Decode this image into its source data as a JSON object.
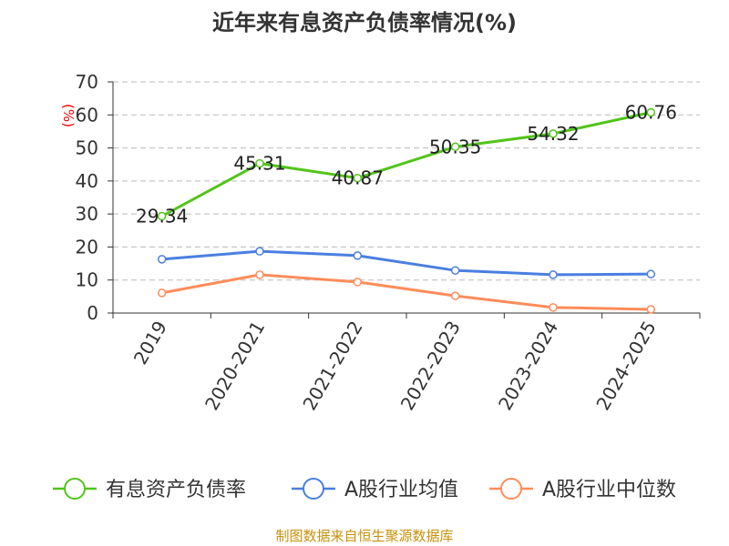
{
  "chart_data": {
    "type": "line",
    "title": "近年来有息资产负债率情况(%)",
    "ylabel": "(%)",
    "xlabel": "",
    "ylim": [
      0,
      70
    ],
    "yticks": [
      0,
      10,
      20,
      30,
      40,
      50,
      60,
      70
    ],
    "categories": [
      "2019",
      "2020-2021",
      "2021-2022",
      "2022-2023",
      "2023-2024",
      "2024-2025"
    ],
    "series": [
      {
        "name": "有息资产负债率",
        "color": "#52c41a",
        "values": [
          29.34,
          45.31,
          40.87,
          50.35,
          54.32,
          60.76
        ],
        "labels": [
          "29.34",
          "45.31",
          "40.87",
          "50.35",
          "54.32",
          "60.76"
        ]
      },
      {
        "name": "A股行业均值",
        "color": "#4a7fe0",
        "values": [
          16.3,
          18.7,
          17.4,
          12.9,
          11.6,
          11.8
        ]
      },
      {
        "name": "A股行业中位数",
        "color": "#ff8c5a",
        "values": [
          6.1,
          11.6,
          9.4,
          5.2,
          1.7,
          1.1
        ]
      }
    ],
    "grid": true,
    "legend_position": "bottom"
  },
  "source": "制图数据来自恒生聚源数据库"
}
